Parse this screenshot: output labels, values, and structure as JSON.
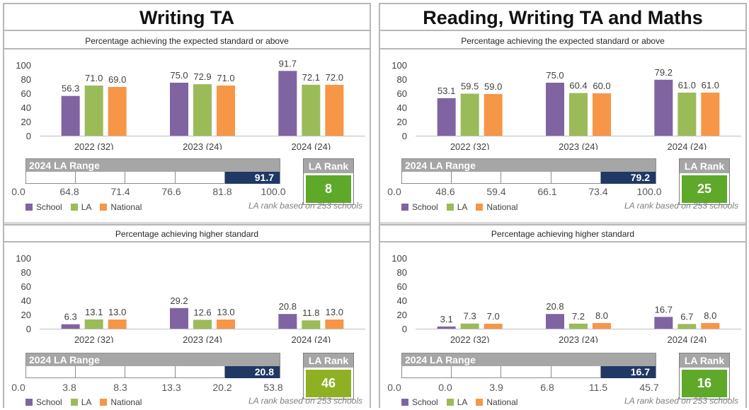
{
  "legend": [
    "School",
    "LA",
    "National"
  ],
  "colors": {
    "School": "#8064a2",
    "LA": "#9bbb59",
    "National": "#f79646",
    "marker": "#1f3864",
    "rank_green": "#5ea82a",
    "rank_olive": "#8fb022"
  },
  "range_label": "2024 LA Range",
  "rank_label": "LA Rank",
  "rank_note": "LA rank based on 253 schools",
  "columns": [
    {
      "title": "Writing TA",
      "panels": [
        {
          "subtitle": "Percentage achieving the expected standard or above",
          "range_ticks": [
            "0.0",
            "64.8",
            "71.4",
            "76.6",
            "81.8",
            "100.0"
          ],
          "range_value": "91.7",
          "rank": "8",
          "rank_color": "rank_green"
        },
        {
          "subtitle": "Percentage achieving higher standard",
          "range_ticks": [
            "0.0",
            "3.8",
            "8.3",
            "13.3",
            "20.2",
            "53.8"
          ],
          "range_value": "20.8",
          "rank": "46",
          "rank_color": "rank_olive"
        }
      ]
    },
    {
      "title": "Reading, Writing TA and Maths",
      "panels": [
        {
          "subtitle": "Percentage achieving the expected standard or above",
          "range_ticks": [
            "0.0",
            "48.6",
            "59.4",
            "66.1",
            "73.4",
            "100.0"
          ],
          "range_value": "79.2",
          "rank": "25",
          "rank_color": "rank_green"
        },
        {
          "subtitle": "Percentage achieving higher standard",
          "range_ticks": [
            "0.0",
            "0.0",
            "3.9",
            "6.8",
            "11.5",
            "45.7"
          ],
          "range_value": "16.7",
          "rank": "16",
          "rank_color": "rank_green"
        }
      ]
    }
  ],
  "chart_data": [
    {
      "type": "bar",
      "title": "Writing TA",
      "subtitle": "Percentage achieving the expected standard or above",
      "categories": [
        "2022 (32)",
        "2023 (24)",
        "2024 (24)"
      ],
      "series": [
        {
          "name": "School",
          "values": [
            56.3,
            75.0,
            91.7
          ],
          "labels": [
            "56.3",
            "75.0",
            "91.7"
          ]
        },
        {
          "name": "LA",
          "values": [
            71.0,
            72.9,
            72.1
          ],
          "labels": [
            "71.0",
            "72.9",
            "72.1"
          ]
        },
        {
          "name": "National",
          "values": [
            69.0,
            71.0,
            72.0
          ],
          "labels": [
            "69.0",
            "71.0",
            "72.0"
          ]
        }
      ],
      "yticks": [
        "0",
        "20",
        "40",
        "60",
        "80",
        "100"
      ],
      "ylim": [
        0,
        100
      ],
      "legend": "bottom-left"
    },
    {
      "type": "bar",
      "title": "Writing TA",
      "subtitle": "Percentage achieving higher standard",
      "categories": [
        "2022 (32)",
        "2023 (24)",
        "2024 (24)"
      ],
      "series": [
        {
          "name": "School",
          "values": [
            6.3,
            29.2,
            20.8
          ],
          "labels": [
            "6.3",
            "29.2",
            "20.8"
          ]
        },
        {
          "name": "LA",
          "values": [
            13.1,
            12.6,
            11.8
          ],
          "labels": [
            "13.1",
            "12.6",
            "11.8"
          ]
        },
        {
          "name": "National",
          "values": [
            13.0,
            13.0,
            13.0
          ],
          "labels": [
            "13.0",
            "13.0",
            "13.0"
          ]
        }
      ],
      "yticks": [
        "0",
        "20",
        "40",
        "60",
        "80",
        "100"
      ],
      "ylim": [
        0,
        100
      ],
      "legend": "bottom-left"
    },
    {
      "type": "bar",
      "title": "Reading, Writing TA and Maths",
      "subtitle": "Percentage achieving the expected standard or above",
      "categories": [
        "2022 (32)",
        "2023 (24)",
        "2024 (24)"
      ],
      "series": [
        {
          "name": "School",
          "values": [
            53.1,
            75.0,
            79.2
          ],
          "labels": [
            "53.1",
            "75.0",
            "79.2"
          ]
        },
        {
          "name": "LA",
          "values": [
            59.5,
            60.4,
            61.0
          ],
          "labels": [
            "59.5",
            "60.4",
            "61.0"
          ]
        },
        {
          "name": "National",
          "values": [
            59.0,
            60.0,
            61.0
          ],
          "labels": [
            "59.0",
            "60.0",
            "61.0"
          ]
        }
      ],
      "yticks": [
        "0",
        "20",
        "40",
        "60",
        "80",
        "100"
      ],
      "ylim": [
        0,
        100
      ],
      "legend": "bottom-left"
    },
    {
      "type": "bar",
      "title": "Reading, Writing TA and Maths",
      "subtitle": "Percentage achieving higher standard",
      "categories": [
        "2022 (32)",
        "2023 (24)",
        "2024 (24)"
      ],
      "series": [
        {
          "name": "School",
          "values": [
            3.1,
            20.8,
            16.7
          ],
          "labels": [
            "3.1",
            "20.8",
            "16.7"
          ]
        },
        {
          "name": "LA",
          "values": [
            7.3,
            7.2,
            6.7
          ],
          "labels": [
            "7.3",
            "7.2",
            "6.7"
          ]
        },
        {
          "name": "National",
          "values": [
            7.0,
            8.0,
            8.0
          ],
          "labels": [
            "7.0",
            "8.0",
            "8.0"
          ]
        }
      ],
      "yticks": [
        "0",
        "20",
        "40",
        "60",
        "80",
        "100"
      ],
      "ylim": [
        0,
        100
      ],
      "legend": "bottom-left"
    }
  ]
}
